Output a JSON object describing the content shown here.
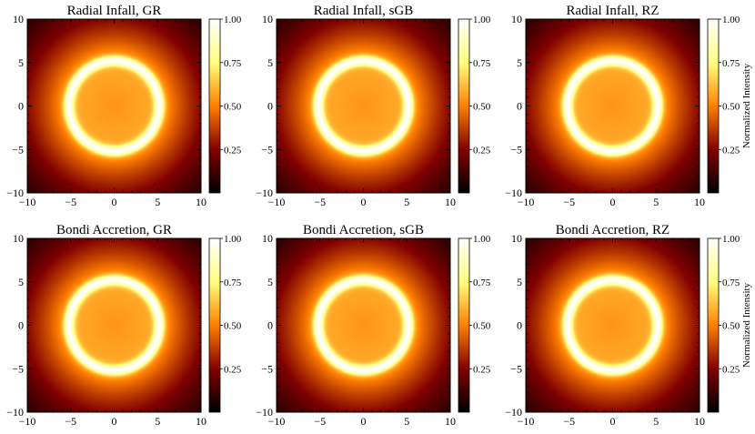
{
  "chart_data": [
    {
      "type": "heatmap",
      "title": "Radial Infall, GR",
      "x": {
        "range": [
          -10,
          10
        ],
        "ticks": [
          -10,
          -5,
          0,
          5,
          10
        ],
        "labels": [
          "−10",
          "−5",
          "0",
          "5",
          "10"
        ]
      },
      "y": {
        "range": [
          -10,
          10
        ],
        "ticks": [
          -10,
          -5,
          0,
          5,
          10
        ],
        "labels": [
          "−10",
          "−5",
          "0",
          "5",
          "10"
        ]
      },
      "colorbar": {
        "range": [
          0,
          1
        ],
        "ticks": [
          0.25,
          0.5,
          0.75,
          1.0
        ],
        "labels": [
          "0.25",
          "0.50",
          "0.75",
          "1.00"
        ],
        "label": ""
      },
      "colormap": "afmhot",
      "ring_radius": 5.2
    },
    {
      "type": "heatmap",
      "title": "Radial Infall, sGB",
      "x": {
        "range": [
          -10,
          10
        ],
        "ticks": [
          -10,
          -5,
          0,
          5,
          10
        ],
        "labels": [
          "−10",
          "−5",
          "0",
          "5",
          "10"
        ]
      },
      "y": {
        "range": [
          -10,
          10
        ],
        "ticks": [
          -10,
          -5,
          0,
          5,
          10
        ],
        "labels": [
          "−10",
          "−5",
          "0",
          "5",
          "10"
        ]
      },
      "colorbar": {
        "range": [
          0,
          1
        ],
        "ticks": [
          0.25,
          0.5,
          0.75,
          1.0
        ],
        "labels": [
          "0.25",
          "0.50",
          "0.75",
          "1.00"
        ],
        "label": ""
      },
      "colormap": "afmhot",
      "ring_radius": 5.2
    },
    {
      "type": "heatmap",
      "title": "Radial Infall, RZ",
      "x": {
        "range": [
          -10,
          10
        ],
        "ticks": [
          -10,
          -5,
          0,
          5,
          10
        ],
        "labels": [
          "−10",
          "−5",
          "0",
          "5",
          "10"
        ]
      },
      "y": {
        "range": [
          -10,
          10
        ],
        "ticks": [
          -10,
          -5,
          0,
          5,
          10
        ],
        "labels": [
          "−10",
          "−5",
          "0",
          "5",
          "10"
        ]
      },
      "colorbar": {
        "range": [
          0,
          1
        ],
        "ticks": [
          0.25,
          0.5,
          0.75,
          1.0
        ],
        "labels": [
          "0.25",
          "0.50",
          "0.75",
          "1.00"
        ],
        "label": "Normalized Intensity"
      },
      "colormap": "afmhot",
      "ring_radius": 5.2
    },
    {
      "type": "heatmap",
      "title": "Bondi Accretion, GR",
      "x": {
        "range": [
          -10,
          10
        ],
        "ticks": [
          -10,
          -5,
          0,
          5,
          10
        ],
        "labels": [
          "−10",
          "−5",
          "0",
          "5",
          "10"
        ]
      },
      "y": {
        "range": [
          -10,
          10
        ],
        "ticks": [
          -10,
          -5,
          0,
          5,
          10
        ],
        "labels": [
          "−10",
          "−5",
          "0",
          "5",
          "10"
        ]
      },
      "colorbar": {
        "range": [
          0,
          1
        ],
        "ticks": [
          0.25,
          0.5,
          0.75,
          1.0
        ],
        "labels": [
          "0.25",
          "0.50",
          "0.75",
          "1.00"
        ],
        "label": ""
      },
      "colormap": "afmhot",
      "ring_radius": 5.2
    },
    {
      "type": "heatmap",
      "title": "Bondi Accretion, sGB",
      "x": {
        "range": [
          -10,
          10
        ],
        "ticks": [
          -10,
          -5,
          0,
          5,
          10
        ],
        "labels": [
          "−10",
          "−5",
          "0",
          "5",
          "10"
        ]
      },
      "y": {
        "range": [
          -10,
          10
        ],
        "ticks": [
          -10,
          -5,
          0,
          5,
          10
        ],
        "labels": [
          "−10",
          "−5",
          "0",
          "5",
          "10"
        ]
      },
      "colorbar": {
        "range": [
          0,
          1
        ],
        "ticks": [
          0.25,
          0.5,
          0.75,
          1.0
        ],
        "labels": [
          "0.25",
          "0.50",
          "0.75",
          "1.00"
        ],
        "label": ""
      },
      "colormap": "afmhot",
      "ring_radius": 5.2
    },
    {
      "type": "heatmap",
      "title": "Bondi Accretion, RZ",
      "x": {
        "range": [
          -10,
          10
        ],
        "ticks": [
          -10,
          -5,
          0,
          5,
          10
        ],
        "labels": [
          "−10",
          "−5",
          "0",
          "5",
          "10"
        ]
      },
      "y": {
        "range": [
          -10,
          10
        ],
        "ticks": [
          -10,
          -5,
          0,
          5,
          10
        ],
        "labels": [
          "−10",
          "−5",
          "0",
          "5",
          "10"
        ]
      },
      "colorbar": {
        "range": [
          0,
          1
        ],
        "ticks": [
          0.25,
          0.5,
          0.75,
          1.0
        ],
        "labels": [
          "0.25",
          "0.50",
          "0.75",
          "1.00"
        ],
        "label": "Normalized Intensity"
      },
      "colormap": "afmhot",
      "ring_radius": 5.2
    }
  ]
}
